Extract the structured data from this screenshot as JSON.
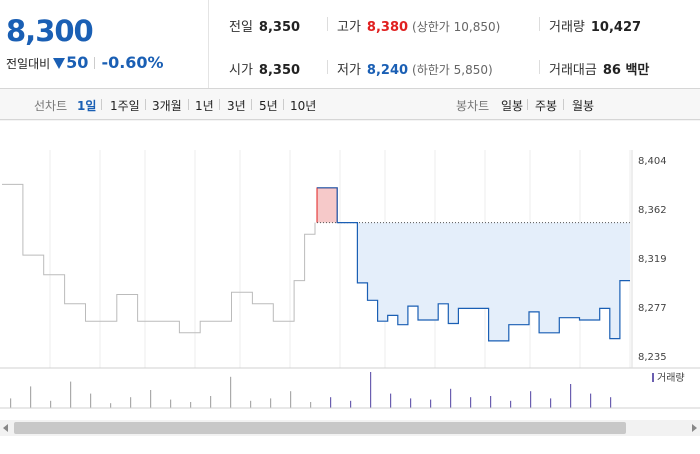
{
  "quote": {
    "price": "8,300",
    "change_label": "전일대비",
    "change_value": "50",
    "change_direction": "down",
    "change_pct": "-0.60%"
  },
  "stats": {
    "prev_close_label": "전일",
    "prev_close": "8,350",
    "open_label": "시가",
    "open": "8,350",
    "high_label": "고가",
    "high": "8,380",
    "upper_limit": "(상한가 10,850)",
    "low_label": "저가",
    "low": "8,240",
    "lower_limit": "(하한가 5,850)",
    "volume_label": "거래량",
    "volume": "10,427",
    "value_label": "거래대금",
    "value": "86 백만"
  },
  "toolbar": {
    "line_label": "선차트",
    "line_tabs": [
      "1일",
      "1주일",
      "3개월",
      "1년",
      "3년",
      "5년",
      "10년"
    ],
    "active_tab": "1일",
    "candle_label": "봉차트",
    "candle_tabs": [
      "일봉",
      "주봉",
      "월봉"
    ]
  },
  "colors": {
    "up": "#e02020",
    "down": "#1a5fb4",
    "prev_day": "#bbbbbb",
    "fill": "#e4eefa"
  },
  "chart_data": {
    "type": "line",
    "y_ticks": [
      "8,404",
      "8,362",
      "8,319",
      "8,277",
      "8,235"
    ],
    "ylim": [
      8235,
      8404
    ],
    "reference_price": 8350,
    "legend": "거래량",
    "series": [
      {
        "values": [
          8383,
          8383,
          8322,
          8322,
          8305,
          8305,
          8280,
          8280,
          8265,
          8265,
          8265,
          8288,
          8288,
          8265,
          8265,
          8265,
          8265,
          8255,
          8255,
          8265,
          8265,
          8265,
          8290,
          8290,
          8280,
          8280,
          8265,
          8265,
          8300,
          8340,
          8350
        ]
      },
      {
        "values": [
          8380,
          8380,
          8350,
          8350,
          8298,
          8283,
          8265,
          8270,
          8262,
          8278,
          8266,
          8266,
          8280,
          8263,
          8276,
          8276,
          8276,
          8248,
          8248,
          8262,
          8262,
          8273,
          8255,
          8255,
          8268,
          8268,
          8266,
          8266,
          8276,
          8250,
          8300,
          8300
        ]
      }
    ],
    "volume": [
      8,
      18,
      6,
      22,
      12,
      4,
      9,
      15,
      7,
      5,
      10,
      26,
      6,
      8,
      14,
      5,
      9,
      6,
      30,
      12,
      8,
      7,
      16,
      9,
      10,
      6,
      14,
      8,
      20,
      12,
      9
    ]
  }
}
